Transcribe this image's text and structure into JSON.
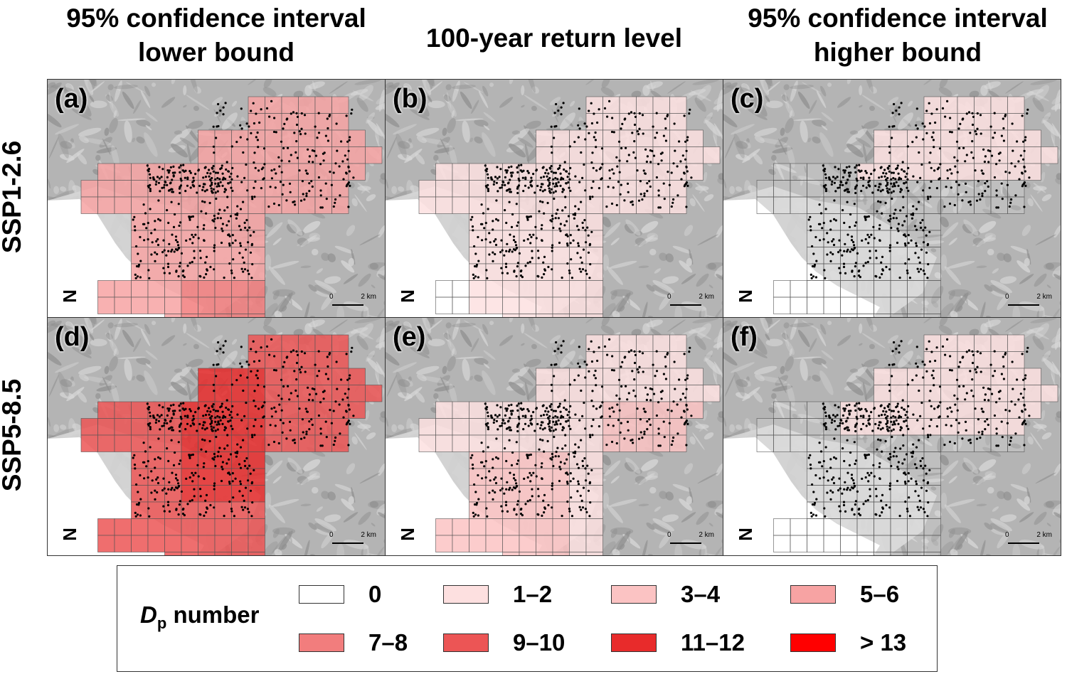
{
  "columns": {
    "left": {
      "line1": "95% confidence interval",
      "line2": "lower bound"
    },
    "center": {
      "line1": "100-year return level"
    },
    "right": {
      "line1": "95% confidence interval",
      "line2": "higher bound"
    }
  },
  "rows": {
    "top": "SSP1-2.6",
    "bottom": "SSP5-8.5"
  },
  "panels": [
    {
      "label": "(a)"
    },
    {
      "label": "(b)"
    },
    {
      "label": "(c)"
    },
    {
      "label": "(d)"
    },
    {
      "label": "(e)"
    },
    {
      "label": "(f)"
    }
  ],
  "map_symbols": {
    "north": "N",
    "scale_zero": "0",
    "scale_dist": "2 km"
  },
  "legend": {
    "title_var": "D",
    "title_sub": "p",
    "title_rest": " number",
    "classes": [
      {
        "label": "0",
        "color": "#ffffff"
      },
      {
        "label": "1–2",
        "color": "#fde0e0"
      },
      {
        "label": "3–4",
        "color": "#fbc3c3"
      },
      {
        "label": "5–6",
        "color": "#f7a3a3"
      },
      {
        "label": "7–8",
        "color": "#f27d7d"
      },
      {
        "label": "9–10",
        "color": "#ec5555"
      },
      {
        "label": "11–12",
        "color": "#e82b2b"
      },
      {
        "label": "> 13",
        "color": "#ff0000"
      }
    ]
  }
}
